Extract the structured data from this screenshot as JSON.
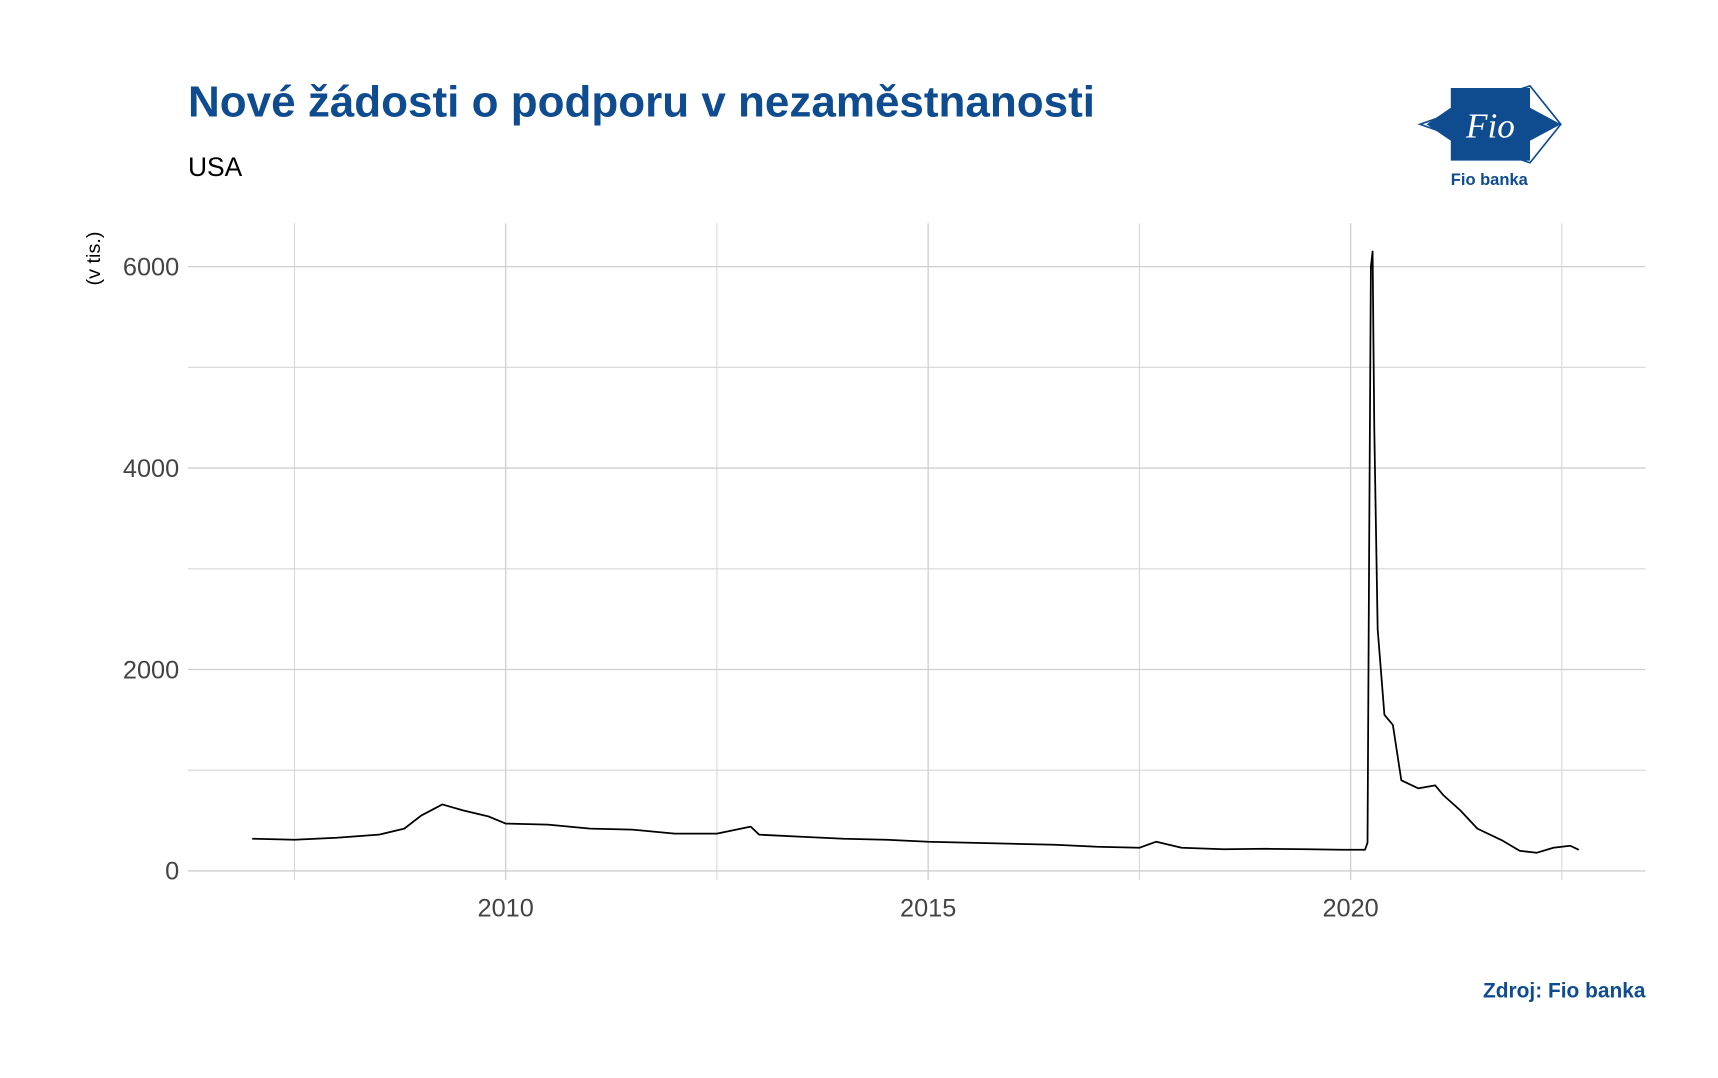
{
  "chart_data": {
    "type": "line",
    "title": "Nové žádosti o podporu v nezaměstnanosti",
    "subtitle": "USA",
    "y_label": "(v tis.)",
    "source": "Zdroj: Fio banka",
    "logo_text": "Fio",
    "logo_caption": "Fio banka",
    "xlim": [
      2006.24,
      2023.49
    ],
    "ylim": [
      -90,
      6430
    ],
    "xticks": [
      2010,
      2015,
      2020
    ],
    "yticks": [
      0,
      2000,
      4000,
      6000
    ],
    "x_minor_ticks": [
      2007.5,
      2012.5,
      2017.5,
      2022.5
    ],
    "y_minor_ticks": [
      1000,
      3000,
      5000
    ],
    "grid": true,
    "series": [
      {
        "color": "#000000",
        "x": [
          2007.0,
          2007.5,
          2008.0,
          2008.5,
          2008.8,
          2009.0,
          2009.25,
          2009.5,
          2009.8,
          2010.0,
          2010.5,
          2011.0,
          2011.5,
          2012.0,
          2012.5,
          2012.9,
          2013.0,
          2013.5,
          2014.0,
          2014.5,
          2015.0,
          2015.5,
          2016.0,
          2016.5,
          2017.0,
          2017.5,
          2017.7,
          2018.0,
          2018.5,
          2019.0,
          2019.5,
          2019.9,
          2020.17,
          2020.2,
          2020.22,
          2020.24,
          2020.26,
          2020.28,
          2020.32,
          2020.4,
          2020.5,
          2020.6,
          2020.8,
          2021.0,
          2021.1,
          2021.3,
          2021.5,
          2021.8,
          2022.0,
          2022.2,
          2022.4,
          2022.6,
          2022.7
        ],
        "values": [
          320,
          310,
          330,
          360,
          420,
          550,
          660,
          600,
          540,
          470,
          460,
          420,
          410,
          370,
          370,
          440,
          360,
          340,
          320,
          310,
          290,
          280,
          270,
          260,
          240,
          230,
          290,
          230,
          215,
          220,
          215,
          210,
          210,
          280,
          3300,
          6000,
          6150,
          4400,
          2400,
          1550,
          1450,
          900,
          820,
          850,
          750,
          600,
          420,
          300,
          200,
          180,
          230,
          250,
          210
        ]
      }
    ]
  }
}
